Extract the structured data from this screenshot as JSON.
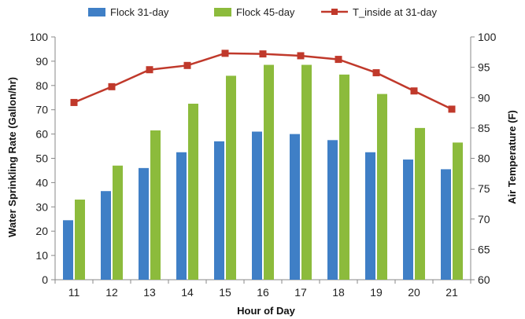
{
  "chart_data": {
    "type": "bar",
    "categories": [
      "11",
      "12",
      "13",
      "14",
      "15",
      "16",
      "17",
      "18",
      "19",
      "20",
      "21"
    ],
    "series": [
      {
        "name": "Flock 31-day",
        "kind": "bar",
        "axis": "left",
        "color": "#3f7fc6",
        "values": [
          24.5,
          36.5,
          46,
          52.5,
          57,
          61,
          60,
          57.5,
          52.5,
          49.5,
          45.5
        ]
      },
      {
        "name": "Flock 45-day",
        "kind": "bar",
        "axis": "left",
        "color": "#8cbb3c",
        "values": [
          33,
          47,
          61.5,
          72.5,
          84,
          88.5,
          88.5,
          84.5,
          76.5,
          62.5,
          56.5
        ]
      },
      {
        "name": "T_inside at 31-day",
        "kind": "line",
        "axis": "right",
        "color": "#c0392b",
        "values": [
          89.2,
          91.8,
          94.6,
          95.3,
          97.3,
          97.2,
          96.9,
          96.3,
          94.1,
          91.1,
          88.1
        ]
      }
    ],
    "xlabel": "Hour of Day",
    "ylabel": "Water Sprinkling Rate (Gallon/hr)",
    "y2label": "Air Temperature (F)",
    "ylim": [
      0,
      100
    ],
    "y2lim": [
      60,
      100
    ],
    "yticks": [
      "0",
      "10",
      "20",
      "30",
      "40",
      "50",
      "60",
      "70",
      "80",
      "90",
      "100"
    ],
    "y2ticks": [
      "60",
      "65",
      "70",
      "75",
      "80",
      "85",
      "90",
      "95",
      "100"
    ],
    "legend_position": "top",
    "grid": false
  }
}
